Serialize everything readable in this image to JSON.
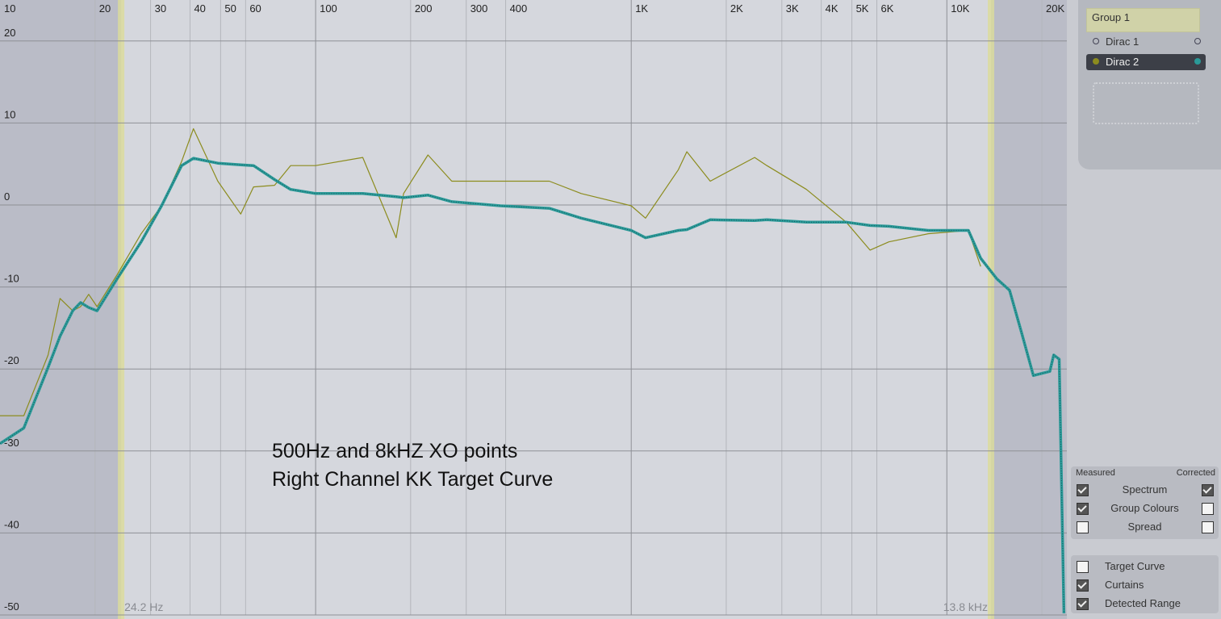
{
  "chart_data": {
    "type": "line",
    "x": [
      10,
      11.9,
      14.2,
      15.5,
      17,
      18,
      19.1,
      20.3,
      23.5,
      28,
      32.5,
      37.6,
      41,
      49,
      57.9,
      63.6,
      74.1,
      83.3,
      100,
      141,
      180,
      190,
      227,
      270,
      385,
      550,
      694,
      1000,
      1110,
      1410,
      1500,
      1780,
      2460,
      2690,
      3590,
      4800,
      5710,
      6550,
      8730,
      11700,
      12800,
      14400,
      15800,
      17200,
      18800,
      21200,
      21800,
      22700,
      23500
    ],
    "series": [
      {
        "name": "Measured",
        "color": "#8c8c1e",
        "values": [
          -25.7,
          -25.7,
          -18.3,
          -11.4,
          -12.9,
          -12.4,
          -10.9,
          -12.4,
          -8.5,
          -3.5,
          -0.1,
          5.3,
          9.3,
          2.9,
          -1.1,
          2.2,
          2.4,
          4.8,
          4.8,
          5.8,
          -4,
          1.4,
          6.1,
          2.9,
          2.9,
          2.9,
          1.4,
          -0.1,
          -1.6,
          4.3,
          6.5,
          2.9,
          5.8,
          4.8,
          1.9,
          -2.1,
          -5.5,
          -4.5,
          -3.5,
          -3.1,
          -7.5,
          null,
          null,
          null,
          null,
          null,
          null,
          null,
          null
        ]
      },
      {
        "name": "Corrected",
        "color": "#2a9a98",
        "values": [
          -29.1,
          -27.2,
          -19.8,
          -16,
          -12.9,
          -11.9,
          -12.5,
          -12.9,
          -9,
          -4.5,
          -0.1,
          4.8,
          5.7,
          5.1,
          4.9,
          4.8,
          3.1,
          1.9,
          1.4,
          1.4,
          1,
          0.9,
          1.2,
          0.4,
          -0.1,
          -0.4,
          -1.6,
          -3.1,
          -4,
          -3.1,
          -3,
          -1.8,
          -1.9,
          -1.8,
          -2.1,
          -2.1,
          -2.5,
          -2.6,
          -3.1,
          -3.1,
          -6.5,
          -9,
          -10.4,
          -15.4,
          -20.8,
          -20.3,
          -18.3,
          -18.8,
          -49.8
        ]
      }
    ],
    "xlim": [
      10,
      24000
    ],
    "log_x": true,
    "xticks": [
      10,
      20,
      30,
      40,
      50,
      60,
      100,
      200,
      300,
      400,
      {
        "value": 1000,
        "label": "1K"
      },
      {
        "value": 2000,
        "label": "2K"
      },
      {
        "value": 3000,
        "label": "3K"
      },
      {
        "value": 4000,
        "label": "4K"
      },
      {
        "value": 5000,
        "label": "5K"
      },
      {
        "value": 6000,
        "label": "6K"
      },
      {
        "value": 10000,
        "label": "10K"
      },
      {
        "value": 20000,
        "label": "20K"
      }
    ],
    "ylim": [
      -50,
      25
    ],
    "yticks": [
      -50,
      -40,
      -30,
      -20,
      -10,
      0,
      10,
      20
    ],
    "grid": true,
    "curtains": [
      {
        "value": 24.2,
        "label": "24.2 Hz"
      },
      {
        "value": 13800,
        "label": "13.8 kHz"
      }
    ],
    "annotations": [
      "500Hz and 8kHZ XO points",
      "Right Channel KK Target Curve"
    ]
  },
  "panel": {
    "group": "Group 1",
    "channels": [
      "Dirac 1",
      "Dirac 2"
    ],
    "rows": [
      {
        "label": "Spectrum",
        "measured": true,
        "corrected": true
      },
      {
        "label": "Group Colours",
        "measured": true,
        "corrected": false
      },
      {
        "label": "Spread",
        "measured": false,
        "corrected": false
      }
    ],
    "options": [
      {
        "label": "Target Curve",
        "checked": false
      },
      {
        "label": "Curtains",
        "checked": true
      },
      {
        "label": "Detected Range",
        "checked": true
      }
    ]
  }
}
